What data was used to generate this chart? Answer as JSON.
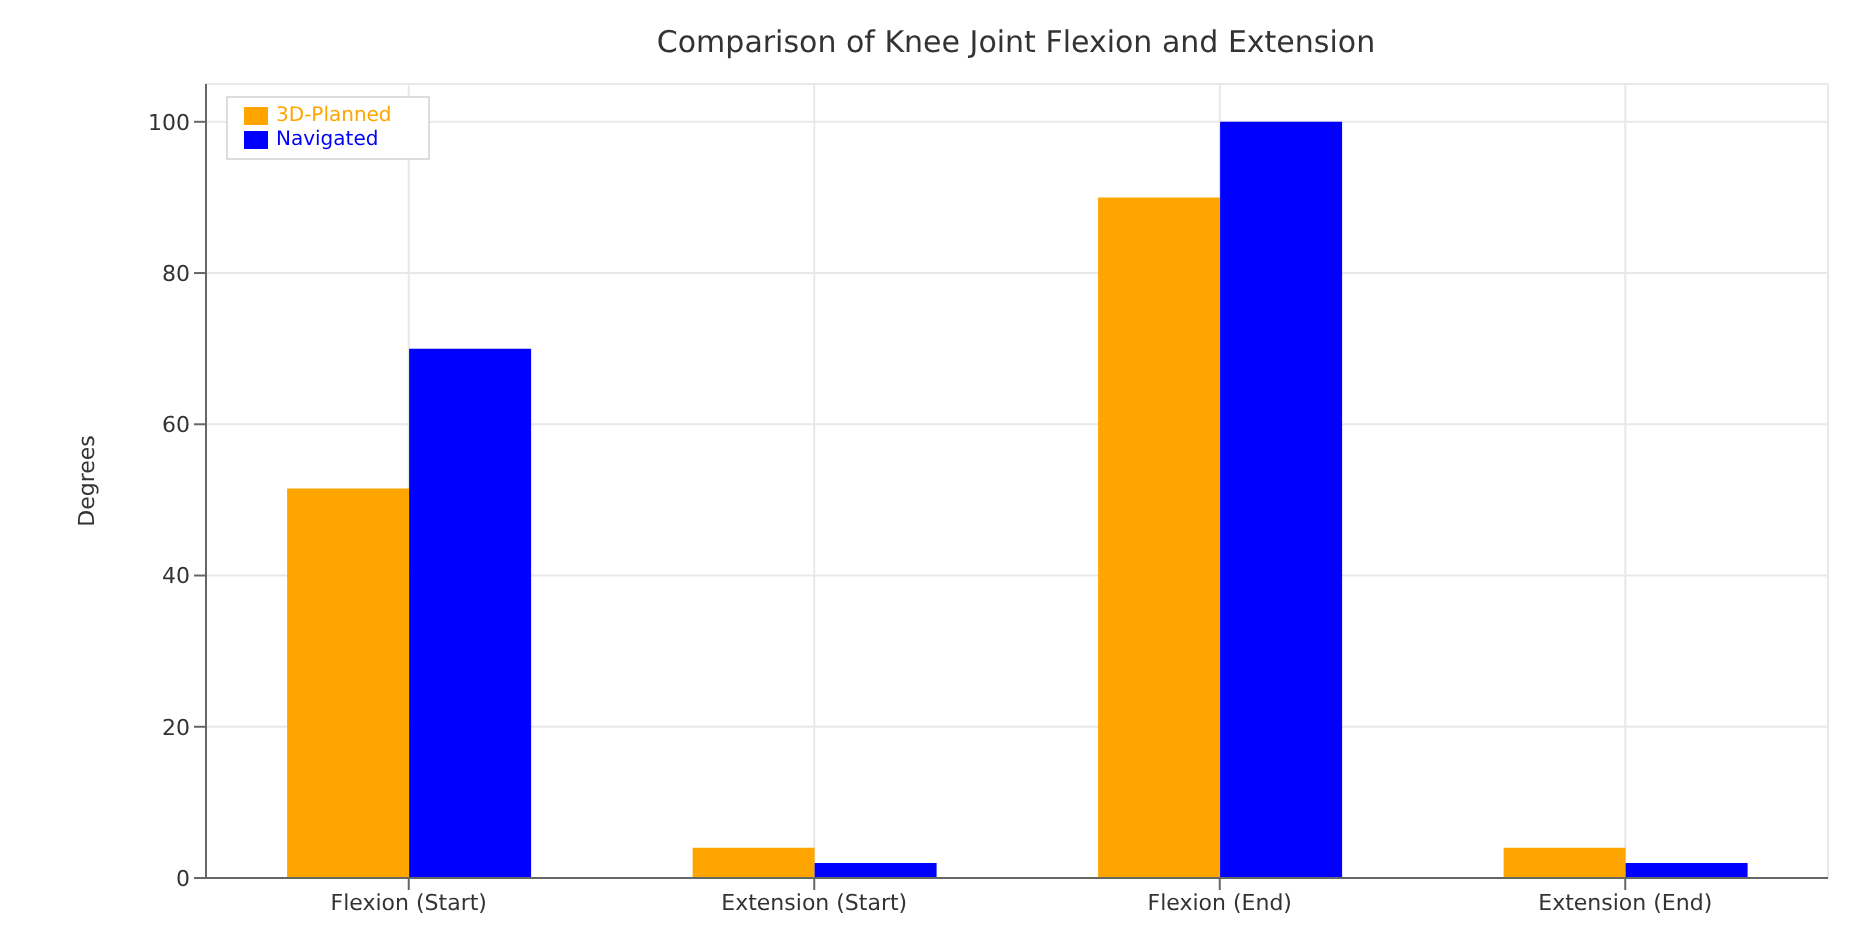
{
  "chart_data": {
    "type": "bar",
    "title": "Comparison of Knee Joint Flexion and Extension",
    "ylabel": "Degrees",
    "categories": [
      "Flexion (Start)",
      "Extension (Start)",
      "Flexion (End)",
      "Extension (End)"
    ],
    "series": [
      {
        "name": "3D-Planned",
        "color": "#ffa500",
        "values": [
          51.5,
          4,
          90,
          4
        ]
      },
      {
        "name": "Navigated",
        "color": "#0000ff",
        "values": [
          70,
          2,
          100,
          2
        ]
      }
    ],
    "ylim": [
      0,
      105
    ],
    "yticks": [
      0,
      20,
      40,
      60,
      80,
      100
    ],
    "grid": true,
    "legend": "top left"
  }
}
